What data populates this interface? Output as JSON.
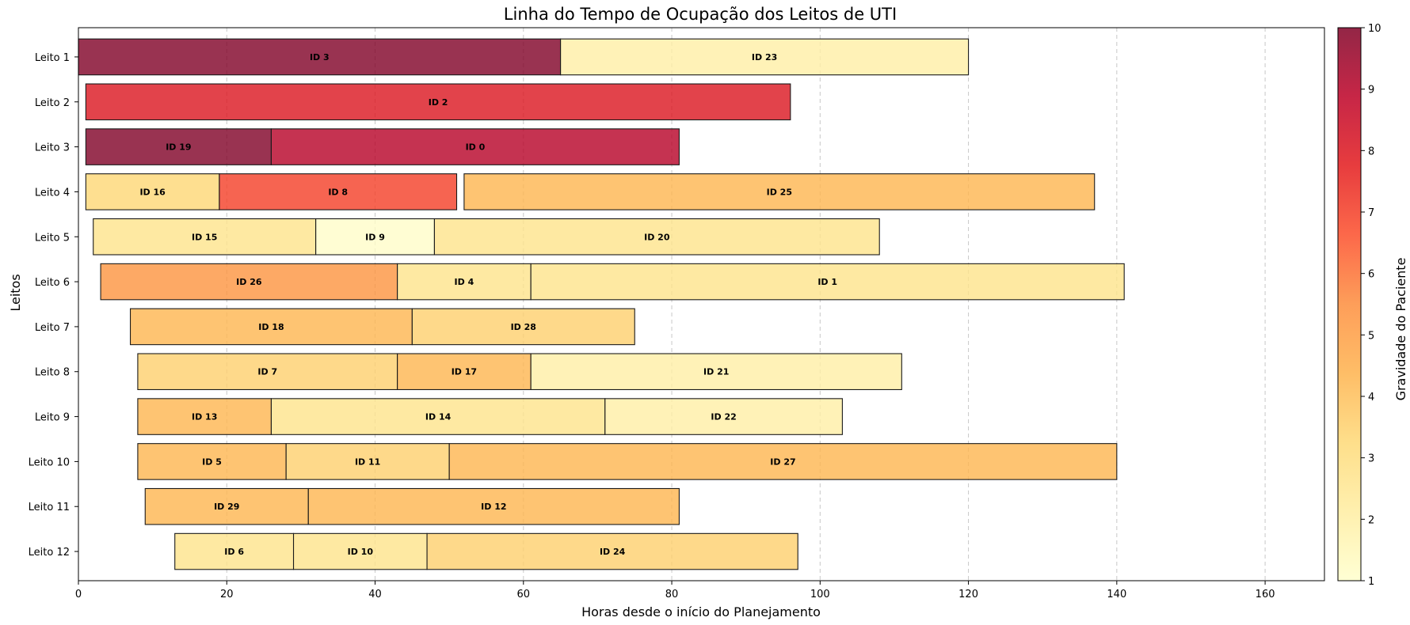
{
  "chart_data": {
    "type": "gantt-bar",
    "title": "Linha do Tempo de Ocupação dos Leitos de UTI",
    "xlabel": "Horas desde o início do Planejamento",
    "ylabel": "Leitos",
    "xlim": [
      0,
      168
    ],
    "xticks": [
      0,
      20,
      40,
      60,
      80,
      100,
      120,
      140,
      160
    ],
    "grid": "x-dashed",
    "categories": [
      "Leito 1",
      "Leito 2",
      "Leito 3",
      "Leito 4",
      "Leito 5",
      "Leito 6",
      "Leito 7",
      "Leito 8",
      "Leito 9",
      "Leito 10",
      "Leito 11",
      "Leito 12"
    ],
    "colorbar": {
      "label": "Gravidade do Paciente",
      "min": 1,
      "max": 10,
      "ticks": [
        1,
        2,
        3,
        4,
        5,
        6,
        7,
        8,
        9,
        10
      ],
      "colormap": "YlOrRd",
      "stops": [
        "#ffffcc",
        "#ffeda0",
        "#fed976",
        "#feb24c",
        "#fd8d3c",
        "#fc4e2a",
        "#e31a1c",
        "#bd0026",
        "#800026"
      ]
    },
    "bars": [
      {
        "bed": "Leito 1",
        "label": "ID 3",
        "start": 0,
        "end": 65,
        "severity": 10
      },
      {
        "bed": "Leito 1",
        "label": "ID 23",
        "start": 65,
        "end": 120,
        "severity": 2
      },
      {
        "bed": "Leito 2",
        "label": "ID 2",
        "start": 1,
        "end": 96,
        "severity": 8
      },
      {
        "bed": "Leito 3",
        "label": "ID 19",
        "start": 1,
        "end": 26,
        "severity": 10
      },
      {
        "bed": "Leito 3",
        "label": "ID 0",
        "start": 26,
        "end": 81,
        "severity": 9
      },
      {
        "bed": "Leito 4",
        "label": "ID 16",
        "start": 1,
        "end": 19,
        "severity": 3.3
      },
      {
        "bed": "Leito 4",
        "label": "ID 8",
        "start": 19,
        "end": 51,
        "severity": 7
      },
      {
        "bed": "Leito 4",
        "label": "ID 25",
        "start": 52,
        "end": 137,
        "severity": 4.3
      },
      {
        "bed": "Leito 5",
        "label": "ID 15",
        "start": 2,
        "end": 32,
        "severity": 2.7
      },
      {
        "bed": "Leito 5",
        "label": "ID 9",
        "start": 32,
        "end": 48,
        "severity": 1.1
      },
      {
        "bed": "Leito 5",
        "label": "ID 20",
        "start": 48,
        "end": 108,
        "severity": 2.7
      },
      {
        "bed": "Leito 6",
        "label": "ID 26",
        "start": 3,
        "end": 43,
        "severity": 5.3
      },
      {
        "bed": "Leito 6",
        "label": "ID 4",
        "start": 43,
        "end": 61,
        "severity": 2.7
      },
      {
        "bed": "Leito 6",
        "label": "ID 1",
        "start": 61,
        "end": 141,
        "severity": 2.7
      },
      {
        "bed": "Leito 7",
        "label": "ID 18",
        "start": 7,
        "end": 45,
        "severity": 4.3
      },
      {
        "bed": "Leito 7",
        "label": "ID 28",
        "start": 45,
        "end": 75,
        "severity": 3.5
      },
      {
        "bed": "Leito 8",
        "label": "ID 7",
        "start": 8,
        "end": 43,
        "severity": 3.5
      },
      {
        "bed": "Leito 8",
        "label": "ID 17",
        "start": 43,
        "end": 61,
        "severity": 4.3
      },
      {
        "bed": "Leito 8",
        "label": "ID 21",
        "start": 61,
        "end": 111,
        "severity": 2
      },
      {
        "bed": "Leito 9",
        "label": "ID 13",
        "start": 8,
        "end": 26,
        "severity": 4.3
      },
      {
        "bed": "Leito 9",
        "label": "ID 14",
        "start": 26,
        "end": 71,
        "severity": 2.7
      },
      {
        "bed": "Leito 9",
        "label": "ID 22",
        "start": 71,
        "end": 103,
        "severity": 2
      },
      {
        "bed": "Leito 10",
        "label": "ID 5",
        "start": 8,
        "end": 28,
        "severity": 4.3
      },
      {
        "bed": "Leito 10",
        "label": "ID 11",
        "start": 28,
        "end": 50,
        "severity": 3.5
      },
      {
        "bed": "Leito 10",
        "label": "ID 27",
        "start": 50,
        "end": 140,
        "severity": 4.3
      },
      {
        "bed": "Leito 11",
        "label": "ID 29",
        "start": 9,
        "end": 31,
        "severity": 4.3
      },
      {
        "bed": "Leito 11",
        "label": "ID 12",
        "start": 31,
        "end": 81,
        "severity": 4.3
      },
      {
        "bed": "Leito 12",
        "label": "ID 6",
        "start": 13,
        "end": 29,
        "severity": 2.7
      },
      {
        "bed": "Leito 12",
        "label": "ID 10",
        "start": 29,
        "end": 47,
        "severity": 2.7
      },
      {
        "bed": "Leito 12",
        "label": "ID 24",
        "start": 47,
        "end": 97,
        "severity": 3.5
      }
    ]
  }
}
